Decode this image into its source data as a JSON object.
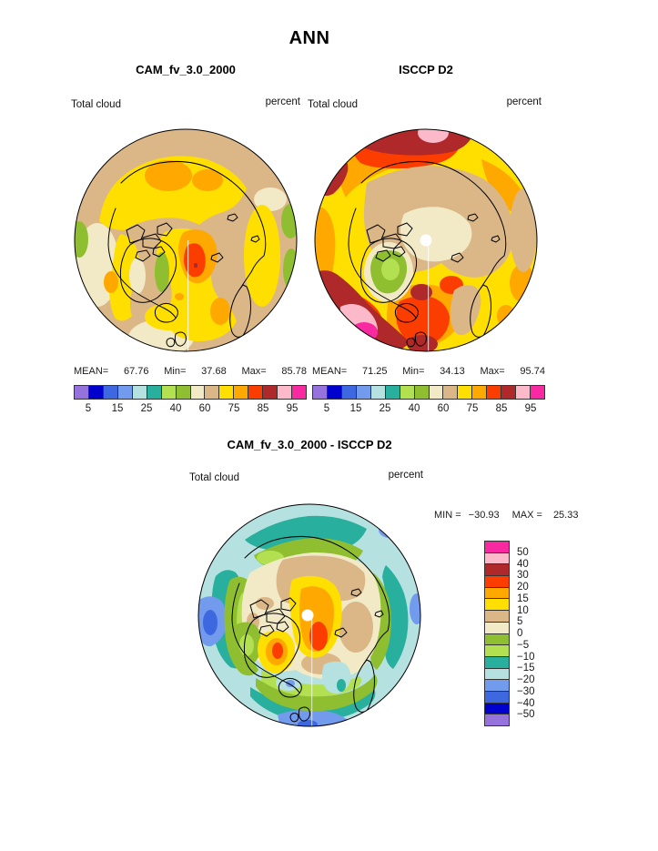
{
  "page": {
    "title": "ANN"
  },
  "palette": {
    "purple": "#9673DC",
    "navy": "#0000CC",
    "royal": "#3E68E0",
    "cornflower": "#729BEE",
    "pale_cyan": "#B5E1E0",
    "teal": "#29AF9D",
    "light_green": "#B3E051",
    "green": "#8FBF30",
    "cream": "#F2EAC6",
    "tan": "#DBB787",
    "yellow": "#FFDF00",
    "orange": "#FFA800",
    "red_orange": "#FB3E00",
    "dark_red": "#AF292A",
    "pink": "#FBB9C9",
    "magenta": "#F929A1",
    "white": "#FFFFFF",
    "coast": "#000000"
  },
  "panels": {
    "cam": {
      "title": "CAM_fv_3.0_2000",
      "field_label": "Total cloud",
      "units_label": "percent",
      "stats": {
        "mean_label": "MEAN=",
        "mean": "67.76",
        "min_label": "Min=",
        "min": "37.68",
        "max_label": "Max=",
        "max": "85.78"
      }
    },
    "isccp": {
      "title": "ISCCP D2",
      "field_label": "Total cloud",
      "units_label": "percent",
      "stats": {
        "mean_label": "MEAN=",
        "mean": "71.25",
        "min_label": "Min=",
        "min": "34.13",
        "max_label": "Max=",
        "max": "95.74"
      }
    },
    "diff": {
      "title": "CAM_fv_3.0_2000 - ISCCP D2",
      "field_label": "Total cloud",
      "units_label": "percent",
      "stats": {
        "min_label": "MIN =",
        "min": "−30.93",
        "max_label": "MAX =",
        "max": "25.33"
      }
    }
  },
  "colorbar": {
    "colors": [
      "#9673DC",
      "#0000CC",
      "#3E68E0",
      "#729BEE",
      "#B5E1E0",
      "#29AF9D",
      "#B3E051",
      "#8FBF30",
      "#F2EAC6",
      "#DBB787",
      "#FFDF00",
      "#FFA800",
      "#FB3E00",
      "#AF292A",
      "#FBB9C9",
      "#F929A1"
    ],
    "tick_labels": [
      "5",
      "15",
      "25",
      "40",
      "60",
      "75",
      "85",
      "95"
    ],
    "tick_positions": [
      1,
      3,
      5,
      7,
      9,
      11,
      13,
      15
    ]
  },
  "diff_colorbar": {
    "colors": [
      "#F929A1",
      "#FBB9C9",
      "#AF292A",
      "#FB3E00",
      "#FFA800",
      "#FFDF00",
      "#DBB787",
      "#F2EAC6",
      "#8FBF30",
      "#B3E051",
      "#29AF9D",
      "#B5E1E0",
      "#729BEE",
      "#3E68E0",
      "#0000CC",
      "#9673DC"
    ],
    "labels": [
      "50",
      "40",
      "30",
      "20",
      "15",
      "10",
      "5",
      "0",
      "−5",
      "−10",
      "−15",
      "−20",
      "−30",
      "−40",
      "−50"
    ]
  },
  "chart_data": [
    {
      "type": "heatmap",
      "title": "CAM_fv_3.0_2000",
      "subtitle": "ANN",
      "variable": "Total cloud",
      "units": "percent",
      "projection": "north polar stereographic map, filled contours",
      "stats": {
        "mean": 67.76,
        "min": 37.68,
        "max": 85.78
      },
      "contour_levels": [
        5,
        10,
        15,
        20,
        25,
        30,
        40,
        50,
        60,
        70,
        75,
        80,
        85,
        90,
        95
      ],
      "legend_tick_labels": [
        5,
        15,
        25,
        40,
        60,
        75,
        85,
        95
      ],
      "legend_position": "below map, horizontal",
      "palette": [
        "#9673DC",
        "#0000CC",
        "#3E68E0",
        "#729BEE",
        "#B5E1E0",
        "#29AF9D",
        "#B3E051",
        "#8FBF30",
        "#F2EAC6",
        "#DBB787",
        "#FFDF00",
        "#FFA800",
        "#FB3E00",
        "#AF292A",
        "#FBB9C9",
        "#F929A1"
      ],
      "description": "Mostly 60-75% (tan) with large 50-60% yellow bands, 70-80% orange patches along Siberian coast and Kara Sea, small >80% red core near Kara Sea, 25-40% green patches at rim and east Greenland"
    },
    {
      "type": "heatmap",
      "title": "ISCCP D2",
      "subtitle": "ANN",
      "variable": "Total cloud",
      "units": "percent",
      "projection": "north polar stereographic map, filled contours",
      "stats": {
        "mean": 71.25,
        "min": 34.13,
        "max": 95.74
      },
      "contour_levels": [
        5,
        10,
        15,
        20,
        25,
        30,
        40,
        50,
        60,
        70,
        75,
        80,
        85,
        90,
        95
      ],
      "legend_tick_labels": [
        5,
        15,
        25,
        40,
        60,
        75,
        85,
        95
      ],
      "legend_position": "below map, horizontal",
      "palette": [
        "#9673DC",
        "#0000CC",
        "#3E68E0",
        "#729BEE",
        "#B5E1E0",
        "#29AF9D",
        "#B3E051",
        "#8FBF30",
        "#F2EAC6",
        "#DBB787",
        "#FFDF00",
        "#FFA800",
        "#FB3E00",
        "#AF292A",
        "#FBB9C9",
        "#F929A1"
      ],
      "description": "High cloud (85-95%, dark red/pink/magenta) around North Atlantic and Pacific rim, 60-75% tan over central Arctic with 50-60% cream polar cap, white missing-data dot at pole, green 30-40% over Greenland"
    },
    {
      "type": "heatmap",
      "title": "CAM_fv_3.0_2000 - ISCCP D2",
      "subtitle": "ANN",
      "variable": "Total cloud",
      "units": "percent",
      "projection": "north polar stereographic map, filled contour difference",
      "stats": {
        "min": -30.93,
        "max": 25.33
      },
      "contour_levels": [
        -50,
        -40,
        -30,
        -20,
        -15,
        -10,
        -5,
        0,
        5,
        10,
        15,
        20,
        30,
        40,
        50
      ],
      "legend_labels": [
        50,
        40,
        30,
        20,
        15,
        10,
        5,
        0,
        -5,
        -10,
        -15,
        -20,
        -30,
        -40,
        -50
      ],
      "legend_position": "right of map, vertical",
      "palette_top_to_bottom": [
        "#F929A1",
        "#FBB9C9",
        "#AF292A",
        "#FB3E00",
        "#FFA800",
        "#FFDF00",
        "#DBB787",
        "#F2EAC6",
        "#8FBF30",
        "#B3E051",
        "#29AF9D",
        "#B5E1E0",
        "#729BEE",
        "#3E68E0",
        "#0000CC",
        "#9673DC"
      ],
      "description": "Positive bias (+10 to +25, yellow/orange/red) over central Arctic near pole and over Greenland; negative bias rings (-5 to -30, green/teal/cyan/blue) around mid-latitude rim; white dot at pole"
    }
  ]
}
